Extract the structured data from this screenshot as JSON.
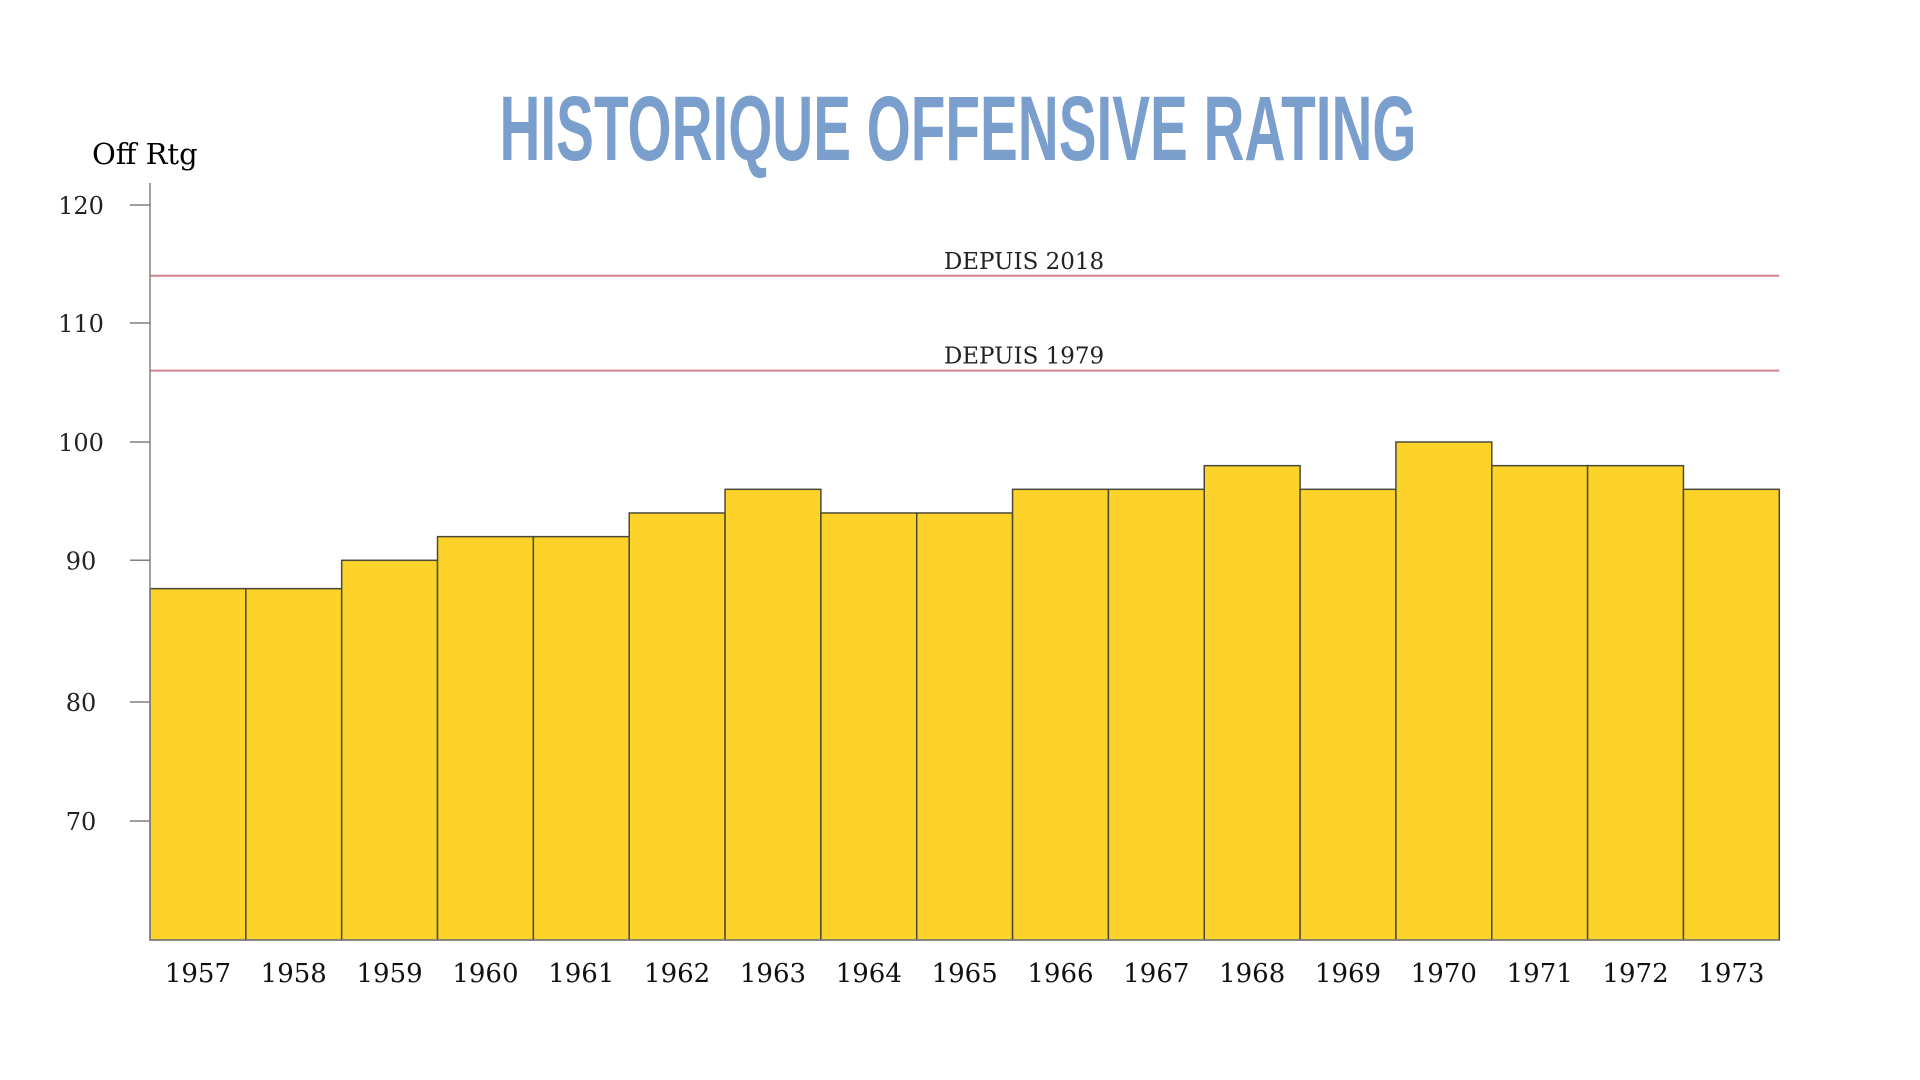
{
  "chart_data": {
    "type": "bar",
    "title": "HISTORIQUE OFFENSIVE RATING",
    "ylabel": "Off Rtg",
    "xlabel": "",
    "categories": [
      "1957",
      "1958",
      "1959",
      "1960",
      "1961",
      "1962",
      "1963",
      "1964",
      "1965",
      "1966",
      "1967",
      "1968",
      "1969",
      "1970",
      "1971",
      "1972",
      "1973"
    ],
    "values": [
      88,
      88,
      90,
      92,
      92,
      94,
      96,
      94,
      94,
      96,
      96,
      98,
      96,
      100,
      98,
      98,
      96
    ],
    "yticks": [
      120,
      110,
      100,
      90,
      80,
      70
    ],
    "ylim": [
      60,
      122
    ],
    "grid": false,
    "reference_lines": [
      {
        "label": "DEPUIS 2018",
        "value": 114
      },
      {
        "label": "DEPUIS 1979",
        "value": 106
      }
    ],
    "colors": {
      "bar": "#fdd32a",
      "bar_edge": "#4a4a3a",
      "reference_line": "#d4828f",
      "title": "#7b9fcc",
      "axis": "#808080"
    }
  }
}
